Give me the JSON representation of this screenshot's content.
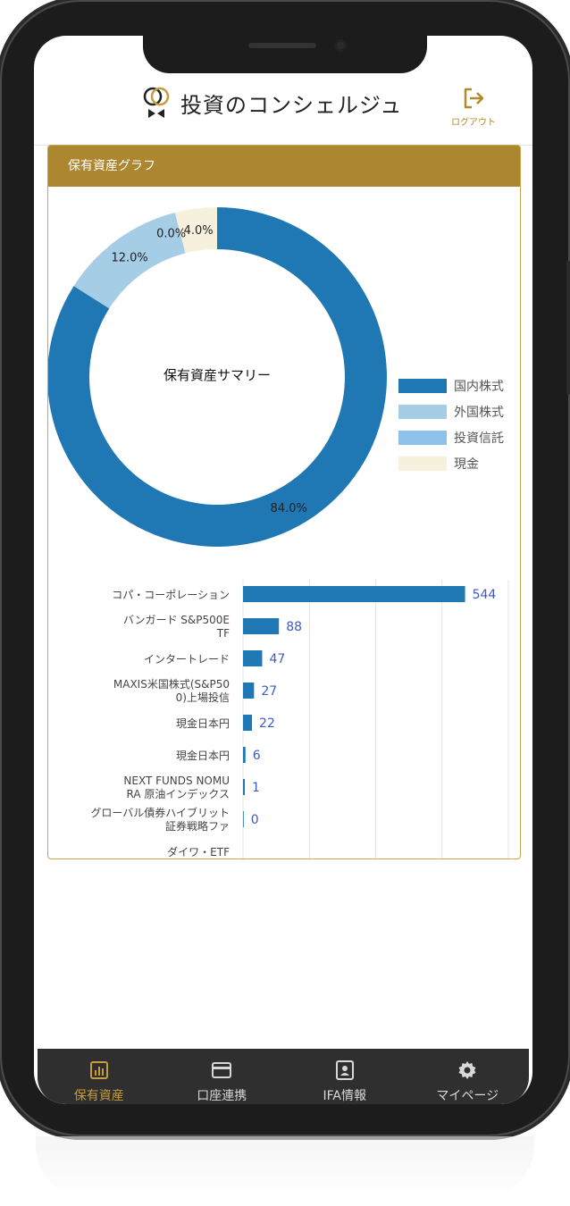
{
  "header": {
    "app_title": "投資のコンシェルジュ",
    "logout_label": "ログアウト"
  },
  "card": {
    "title": "保有資産グラフ"
  },
  "donut": {
    "center_label": "保有資産サマリー",
    "colors": [
      "#1f77b4",
      "#a6cde6",
      "#8ec2ea",
      "#f7f0dc"
    ],
    "slices": [
      {
        "label": "国内株式",
        "value": 84.0,
        "text": "84.0%"
      },
      {
        "label": "外国株式",
        "value": 12.0,
        "text": "12.0%"
      },
      {
        "label": "投資信託",
        "value": 0.0,
        "text": "0.0%"
      },
      {
        "label": "現金",
        "value": 4.0,
        "text": "4.0%"
      }
    ]
  },
  "chart_data": {
    "type": "bar",
    "orientation": "horizontal",
    "categories": [
      "コパ・コーポレーション",
      "バンガード S&P500ETF",
      "インタートレード",
      "MAXIS米国株式(S&P500)上場投信",
      "現金日本円",
      "現金日本円",
      "NEXT FUNDS NOMURA 原油インデックス",
      "グローバル債券ハイブリッド証券戦略ファ",
      "ダイワ ETF"
    ],
    "label_lines": [
      [
        "コパ・コーポレーション"
      ],
      [
        "バンガード S&P500E",
        "TF"
      ],
      [
        "インタートレード"
      ],
      [
        "MAXIS米国株式(S&P50",
        "0)上場投信"
      ],
      [
        "現金日本円"
      ],
      [
        "現金日本円"
      ],
      [
        "NEXT FUNDS NOMU",
        "RA 原油インデックス"
      ],
      [
        "グローバル債券ハイブリット",
        "証券戦略ファ"
      ],
      [
        "ダイワ・ETF"
      ]
    ],
    "values": [
      544,
      88,
      47,
      27,
      22,
      6,
      1,
      0,
      null
    ],
    "value_labels": [
      "544",
      "88",
      "47",
      "27",
      "22",
      "6",
      "1",
      "0",
      ""
    ],
    "xlim": [
      0,
      650
    ],
    "grid": true,
    "bar_color": "#1f77b4",
    "value_color": "#3b5cc4"
  },
  "tabbar": {
    "items": [
      {
        "label": "保有資産",
        "icon": "bar-chart-icon",
        "active": true
      },
      {
        "label": "口座連携",
        "icon": "credit-card-icon",
        "active": false
      },
      {
        "label": "IFA情報",
        "icon": "id-badge-icon",
        "active": false
      },
      {
        "label": "マイページ",
        "icon": "gear-icon",
        "active": false
      }
    ],
    "active_color": "#c89b3c",
    "inactive_color": "#d8d8d8"
  },
  "colors": {
    "accent": "#ad8630",
    "logout": "#b08a2e"
  }
}
